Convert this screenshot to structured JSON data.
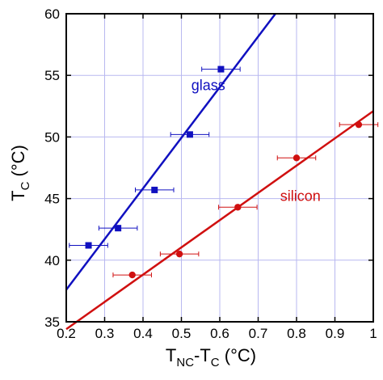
{
  "chart_data": {
    "type": "scatter",
    "xlabel": {
      "main": "T",
      "sub1": "NC",
      "mid": "-T",
      "sub2": "C",
      "unit": " (°C)"
    },
    "ylabel": {
      "main": "T",
      "sub": "C",
      "unit": " (°C)"
    },
    "xlim": [
      0.2,
      1.0
    ],
    "ylim": [
      35,
      60
    ],
    "xticks": [
      0.2,
      0.3,
      0.4,
      0.5,
      0.6,
      0.7,
      0.8,
      0.9,
      1.0
    ],
    "xtick_labels": [
      "0.2",
      "0.3",
      "0.4",
      "0.5",
      "0.6",
      "0.7",
      "0.8",
      "0.9",
      "1"
    ],
    "yticks": [
      35,
      40,
      45,
      50,
      55,
      60
    ],
    "ytick_labels": [
      "35",
      "40",
      "45",
      "50",
      "55",
      "60"
    ],
    "grid": true,
    "series": [
      {
        "name": "glass",
        "color": "#1010c0",
        "marker": "square",
        "points": [
          {
            "x": 0.258,
            "y": 41.2,
            "xerr": 0.05
          },
          {
            "x": 0.335,
            "y": 42.6,
            "xerr": 0.05
          },
          {
            "x": 0.43,
            "y": 45.7,
            "xerr": 0.05
          },
          {
            "x": 0.522,
            "y": 50.2,
            "xerr": 0.05
          },
          {
            "x": 0.603,
            "y": 55.5,
            "xerr": 0.05
          }
        ],
        "fit": {
          "x": [
            0.2,
            0.745
          ],
          "y": [
            37.6,
            60.0
          ]
        }
      },
      {
        "name": "silicon",
        "color": "#d01010",
        "marker": "circle",
        "points": [
          {
            "x": 0.372,
            "y": 38.8,
            "xerr": 0.05
          },
          {
            "x": 0.495,
            "y": 40.5,
            "xerr": 0.05
          },
          {
            "x": 0.647,
            "y": 44.3,
            "xerr": 0.05
          },
          {
            "x": 0.8,
            "y": 48.3,
            "xerr": 0.05
          },
          {
            "x": 0.962,
            "y": 51.0,
            "xerr": 0.05
          }
        ],
        "fit": {
          "x": [
            0.2,
            1.0
          ],
          "y": [
            34.4,
            52.1
          ]
        }
      }
    ],
    "annotations": [
      {
        "text": "glass",
        "x": 0.57,
        "y": 53.8,
        "color": "#1010c0"
      },
      {
        "text": "silicon",
        "x": 0.81,
        "y": 44.8,
        "color": "#d01010"
      }
    ]
  }
}
